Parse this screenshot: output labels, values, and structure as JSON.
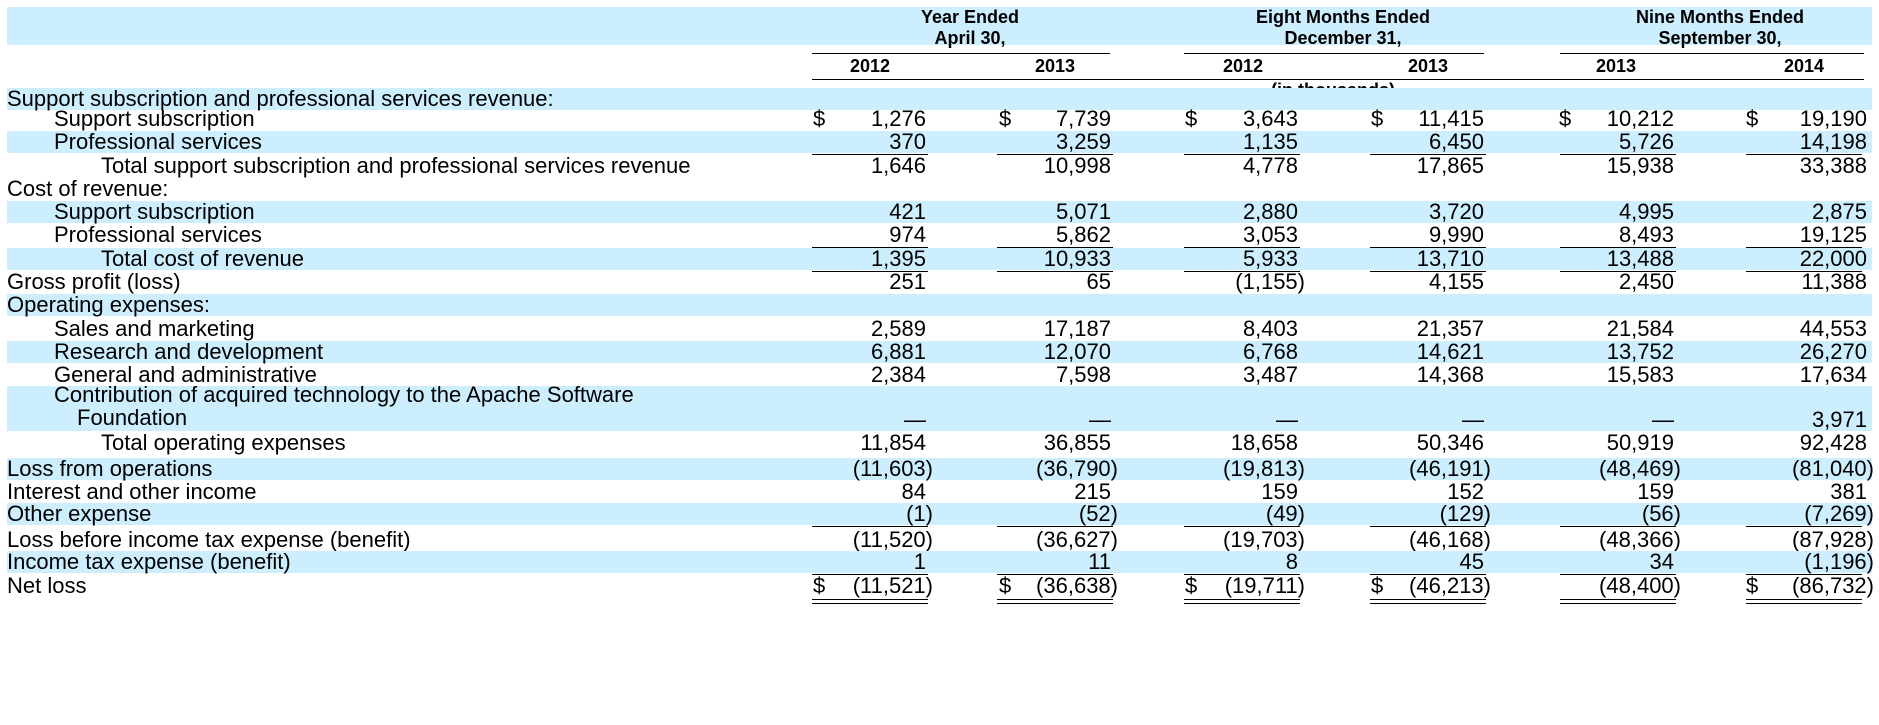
{
  "header": {
    "groups": [
      {
        "line1": "Year Ended",
        "line2": "April 30,"
      },
      {
        "line1": "Eight Months Ended",
        "line2": "December 31,"
      },
      {
        "line1": "Nine Months Ended",
        "line2": "September 30,"
      }
    ],
    "years": [
      "2012",
      "2013",
      "2012",
      "2013",
      "2013",
      "2014"
    ],
    "units": "(in thousands)"
  },
  "rows": [
    {
      "label": "Support subscription and professional services revenue:",
      "indent": 0,
      "values": []
    },
    {
      "label": "Support subscription",
      "indent": 1,
      "values": [
        "1,276",
        "7,739",
        "3,643",
        "11,415",
        "10,212",
        "19,190"
      ],
      "dollar": [
        true,
        true,
        true,
        true,
        true,
        true
      ]
    },
    {
      "label": "Professional services",
      "indent": 1,
      "values": [
        "370",
        "3,259",
        "1,135",
        "6,450",
        "5,726",
        "14,198"
      ]
    },
    {
      "label": "Total support subscription and professional services revenue",
      "indent": 2,
      "values": [
        "1,646",
        "10,998",
        "4,778",
        "17,865",
        "15,938",
        "33,388"
      ]
    },
    {
      "label": "Cost of revenue:",
      "indent": 0,
      "values": []
    },
    {
      "label": "Support subscription",
      "indent": 1,
      "values": [
        "421",
        "5,071",
        "2,880",
        "3,720",
        "4,995",
        "2,875"
      ]
    },
    {
      "label": "Professional services",
      "indent": 1,
      "values": [
        "974",
        "5,862",
        "3,053",
        "9,990",
        "8,493",
        "19,125"
      ]
    },
    {
      "label": "Total cost of revenue",
      "indent": 2,
      "values": [
        "1,395",
        "10,933",
        "5,933",
        "13,710",
        "13,488",
        "22,000"
      ]
    },
    {
      "label": "Gross profit (loss)",
      "indent": 0,
      "values": [
        "251",
        "65",
        "(1,155)",
        "4,155",
        "2,450",
        "11,388"
      ]
    },
    {
      "label": "Operating expenses:",
      "indent": 0,
      "values": []
    },
    {
      "label": "Sales and marketing",
      "indent": 1,
      "values": [
        "2,589",
        "17,187",
        "8,403",
        "21,357",
        "21,584",
        "44,553"
      ]
    },
    {
      "label": "Research and development",
      "indent": 1,
      "values": [
        "6,881",
        "12,070",
        "6,768",
        "14,621",
        "13,752",
        "26,270"
      ]
    },
    {
      "label": "General and administrative",
      "indent": 1,
      "values": [
        "2,384",
        "7,598",
        "3,487",
        "14,368",
        "15,583",
        "17,634"
      ]
    },
    {
      "label": "Contribution of acquired technology to the Apache Software",
      "label2": "Foundation",
      "indent": 1,
      "values": [
        "—",
        "—",
        "—",
        "—",
        "—",
        "3,971"
      ]
    },
    {
      "label": "Total operating expenses",
      "indent": 2,
      "values": [
        "11,854",
        "36,855",
        "18,658",
        "50,346",
        "50,919",
        "92,428"
      ]
    },
    {
      "label": "Loss from operations",
      "indent": 0,
      "values": [
        "(11,603)",
        "(36,790)",
        "(19,813)",
        "(46,191)",
        "(48,469)",
        "(81,040)"
      ]
    },
    {
      "label": "Interest and other income",
      "indent": 0,
      "values": [
        "84",
        "215",
        "159",
        "152",
        "159",
        "381"
      ]
    },
    {
      "label": "Other expense",
      "indent": 0,
      "values": [
        "(1)",
        "(52)",
        "(49)",
        "(129)",
        "(56)",
        "(7,269)"
      ]
    },
    {
      "label": "Loss before income tax expense (benefit)",
      "indent": 0,
      "values": [
        "(11,520)",
        "(36,627)",
        "(19,703)",
        "(46,168)",
        "(48,366)",
        "(87,928)"
      ]
    },
    {
      "label": "Income tax expense (benefit)",
      "indent": 0,
      "values": [
        "1",
        "11",
        "8",
        "45",
        "34",
        "(1,196)"
      ]
    },
    {
      "label": "Net loss",
      "indent": 0,
      "values": [
        "(11,521)",
        "(36,638)",
        "(19,711)",
        "(46,213)",
        "(48,400)",
        "(86,732)"
      ],
      "dollar": [
        true,
        true,
        true,
        true,
        false,
        true
      ]
    }
  ],
  "currency_symbol": "$"
}
